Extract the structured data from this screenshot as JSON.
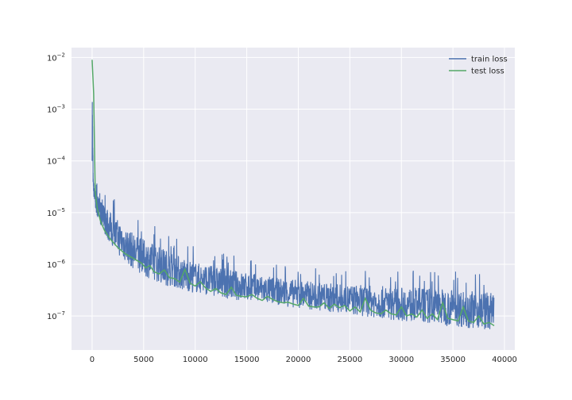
{
  "chart_data": {
    "type": "line",
    "title": "",
    "xlabel": "",
    "ylabel": "",
    "y_scale": "log",
    "xlim": [
      -2000,
      41000
    ],
    "ylim": [
      2.2e-08,
      0.0155
    ],
    "grid": true,
    "legend_placement": "top-right",
    "x_ticks": [
      0,
      5000,
      10000,
      15000,
      20000,
      25000,
      30000,
      35000,
      40000
    ],
    "x_tick_labels": [
      "0",
      "5000",
      "10000",
      "15000",
      "20000",
      "25000",
      "30000",
      "35000",
      "40000"
    ],
    "y_ticks": [
      1e-07,
      1e-06,
      1e-05,
      0.0001,
      0.001,
      0.01
    ],
    "y_tick_labels": [
      {
        "base": "10",
        "exp": "−7"
      },
      {
        "base": "10",
        "exp": "−6"
      },
      {
        "base": "10",
        "exp": "−5"
      },
      {
        "base": "10",
        "exp": "−4"
      },
      {
        "base": "10",
        "exp": "−3"
      },
      {
        "base": "10",
        "exp": "−2"
      }
    ],
    "series": [
      {
        "name": "train loss",
        "color": "#4c72b0",
        "style": "noisy band",
        "x": [
          0,
          100,
          200,
          400,
          600,
          1000,
          1500,
          2000,
          3000,
          4000,
          5000,
          6000,
          7000,
          8000,
          9000,
          10000,
          12000,
          14000,
          16000,
          18000,
          20000,
          22000,
          24000,
          26000,
          28000,
          30000,
          32000,
          34000,
          36000,
          38000,
          39000
        ],
        "upper": [
          0.009,
          5e-05,
          3e-05,
          2.5e-05,
          2e-05,
          1.5e-05,
          1.2e-05,
          9e-06,
          6e-06,
          4e-06,
          3e-06,
          2.5e-06,
          2e-06,
          1.6e-06,
          1.3e-06,
          1.1e-06,
          9e-07,
          7.5e-07,
          6.5e-07,
          5.5e-07,
          5e-07,
          4.5e-07,
          4.2e-07,
          4e-07,
          3.8e-07,
          3.6e-07,
          3.5e-07,
          3.4e-07,
          3.2e-07,
          3e-07,
          2.8e-07
        ],
        "lower": [
          0.0001,
          3e-05,
          1.6e-05,
          1e-05,
          7e-06,
          5e-06,
          3e-06,
          2e-06,
          1.2e-06,
          8e-07,
          6e-07,
          4.8e-07,
          4e-07,
          3.5e-07,
          3e-07,
          2.8e-07,
          2.4e-07,
          2e-07,
          1.8e-07,
          1.6e-07,
          1.4e-07,
          1.25e-07,
          1.1e-07,
          1e-07,
          9e-08,
          8e-08,
          7.5e-08,
          6.5e-08,
          6e-08,
          5.5e-08,
          5e-08
        ]
      },
      {
        "name": "test loss",
        "color": "#55a868",
        "style": "line",
        "x": [
          0,
          150,
          300,
          500,
          800,
          1200,
          1800,
          2500,
          3200,
          4000,
          4800,
          5200,
          5600,
          6000,
          6500,
          7000,
          7500,
          8000,
          8500,
          9000,
          9500,
          10000,
          10500,
          11000,
          11500,
          12000,
          12500,
          13000,
          13500,
          14000,
          14500,
          15000,
          15500,
          16000,
          16500,
          17000,
          17500,
          18000,
          18500,
          19000,
          19500,
          20000,
          20500,
          21000,
          21500,
          22000,
          22500,
          23000,
          23500,
          24000,
          24500,
          25000,
          25500,
          26000,
          26500,
          27000,
          27500,
          28000,
          28500,
          29000,
          29500,
          30000,
          30500,
          31000,
          31500,
          32000,
          32500,
          33000,
          33500,
          34000,
          34500,
          35000,
          35500,
          36000,
          36500,
          37000,
          37500,
          38000,
          38500,
          39000
        ],
        "y": [
          0.009,
          0.002,
          2.5e-05,
          1.2e-05,
          7e-06,
          4.5e-06,
          3e-06,
          2.1e-06,
          1.6e-06,
          1.3e-06,
          1.05e-06,
          8.5e-07,
          9.5e-07,
          7.2e-07,
          6.5e-07,
          7.8e-07,
          5.5e-07,
          5.3e-07,
          4.5e-07,
          8e-07,
          4.3e-07,
          3.8e-07,
          4.6e-07,
          3.5e-07,
          3e-07,
          3.4e-07,
          2.8e-07,
          2.6e-07,
          3.6e-07,
          2.5e-07,
          2.4e-07,
          2.35e-07,
          2.6e-07,
          2.2e-07,
          2e-07,
          2.4e-07,
          2.1e-07,
          1.9e-07,
          1.8e-07,
          1.85e-07,
          1.7e-07,
          1.6e-07,
          2.2e-07,
          1.55e-07,
          1.5e-07,
          1.5e-07,
          1.8e-07,
          1.4e-07,
          1.7e-07,
          1.45e-07,
          1.6e-07,
          1.25e-07,
          1.5e-07,
          1.2e-07,
          2.2e-07,
          1.3e-07,
          1.15e-07,
          1.1e-07,
          1.3e-07,
          1.1e-07,
          1.05e-07,
          1.5e-07,
          1e-07,
          1.1e-07,
          9.5e-08,
          1.3e-07,
          9e-08,
          1.1e-07,
          8.5e-08,
          1.8e-07,
          9e-08,
          8.5e-08,
          8e-08,
          1.5e-07,
          8e-08,
          7.5e-08,
          1e-07,
          7e-08,
          7.5e-08,
          6.5e-08
        ]
      }
    ]
  }
}
